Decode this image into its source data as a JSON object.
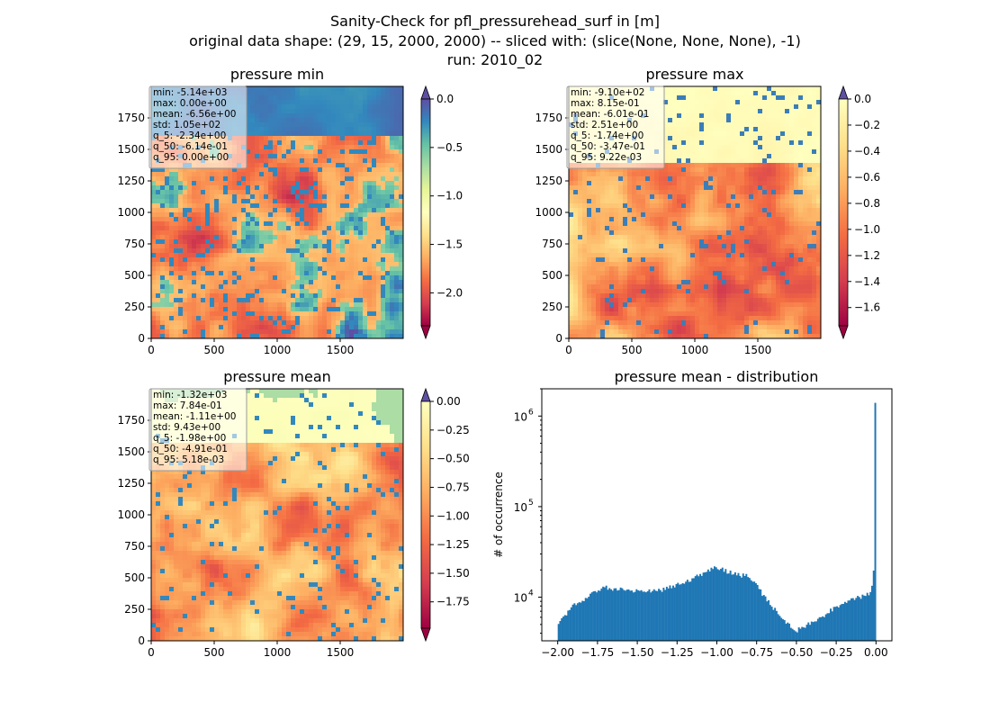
{
  "figure": {
    "title_lines": [
      "Sanity-Check for pfl_pressurehead_surf in [m]",
      "original data shape: (29, 15, 2000, 2000) -- sliced with: (slice(None, None, None), -1)",
      "run: 2010_02"
    ]
  },
  "colors": {
    "cmap": "Spectral",
    "over": "#5e4fa2",
    "bar": "#1f77b4"
  },
  "chart_data": [
    {
      "type": "heatmap",
      "title": "pressure min",
      "cmap": "Spectral",
      "xlim": [
        0,
        2000
      ],
      "ylim": [
        0,
        2000
      ],
      "xticks": [
        "0",
        "500",
        "1000",
        "1500"
      ],
      "yticks": [
        "0",
        "250",
        "500",
        "750",
        "1000",
        "1250",
        "1500",
        "1750"
      ],
      "colorbar": {
        "range": [
          -2.34,
          0.0
        ],
        "ticks": [
          "0.0",
          "-0.5",
          "-1.0",
          "-1.5",
          "-2.0"
        ],
        "extend": "both"
      },
      "stats": [
        "min: -5.14e+03",
        "max: 0.00e+00",
        "mean: -6.56e+00",
        "std: 1.05e+02",
        "q_5: -2.34e+00",
        "q_50: -6.14e-01",
        "q_95: 0.00e+00"
      ]
    },
    {
      "type": "heatmap",
      "title": "pressure max",
      "cmap": "Spectral",
      "xlim": [
        0,
        2000
      ],
      "ylim": [
        0,
        2000
      ],
      "xticks": [
        "0",
        "500",
        "1000",
        "1500"
      ],
      "yticks": [
        "0",
        "250",
        "500",
        "750",
        "1000",
        "1250",
        "1500",
        "1750"
      ],
      "colorbar": {
        "range": [
          -1.74,
          0.0
        ],
        "ticks": [
          "0.0",
          "-0.2",
          "-0.4",
          "-0.6",
          "-0.8",
          "-1.0",
          "-1.2",
          "-1.4",
          "-1.6"
        ],
        "extend": "both"
      },
      "stats": [
        "min: -9.10e+02",
        "max: 8.15e-01",
        "mean: -6.01e-01",
        "std: 2.51e+00",
        "q_5: -1.74e+00",
        "q_50: -3.47e-01",
        "q_95: 9.22e-03"
      ]
    },
    {
      "type": "heatmap",
      "title": "pressure mean",
      "cmap": "Spectral",
      "xlim": [
        0,
        2000
      ],
      "ylim": [
        0,
        2000
      ],
      "xticks": [
        "0",
        "500",
        "1000",
        "1500"
      ],
      "yticks": [
        "0",
        "250",
        "500",
        "750",
        "1000",
        "1250",
        "1500",
        "1750"
      ],
      "colorbar": {
        "range": [
          -1.98,
          0.0
        ],
        "ticks": [
          "0.00",
          "-0.25",
          "-0.50",
          "-0.75",
          "-1.00",
          "-1.25",
          "-1.50",
          "-1.75"
        ],
        "extend": "both"
      },
      "stats": [
        "min: -1.32e+03",
        "max: 7.84e-01",
        "mean: -1.11e+00",
        "std: 9.43e+00",
        "q_5: -1.98e+00",
        "q_50: -4.91e-01",
        "q_95: 5.18e-03"
      ]
    },
    {
      "type": "bar",
      "title": "pressure mean - distribution",
      "xlabel": "",
      "ylabel": "# of occurrence",
      "yscale": "log",
      "xlim": [
        -2.1,
        0.1
      ],
      "ylim": [
        3300,
        2000000
      ],
      "xticks": [
        "-2.00",
        "-1.75",
        "-1.50",
        "-1.25",
        "-1.00",
        "-0.75",
        "-0.50",
        "-0.25",
        "0.00"
      ],
      "yticks": [
        "10^4",
        "10^5",
        "10^6"
      ],
      "bin_edges": [
        -2.0,
        0.0
      ],
      "bins": 200,
      "curve": [
        {
          "x": -2.0,
          "y": 5200
        },
        {
          "x": -1.96,
          "y": 6000
        },
        {
          "x": -1.9,
          "y": 8000
        },
        {
          "x": -1.8,
          "y": 10500
        },
        {
          "x": -1.75,
          "y": 11800
        },
        {
          "x": -1.7,
          "y": 12800
        },
        {
          "x": -1.65,
          "y": 12500
        },
        {
          "x": -1.55,
          "y": 11900
        },
        {
          "x": -1.45,
          "y": 11500
        },
        {
          "x": -1.35,
          "y": 12000
        },
        {
          "x": -1.25,
          "y": 13600
        },
        {
          "x": -1.15,
          "y": 16000
        },
        {
          "x": -1.05,
          "y": 19500
        },
        {
          "x": -1.0,
          "y": 21500
        },
        {
          "x": -0.95,
          "y": 19500
        },
        {
          "x": -0.85,
          "y": 17500
        },
        {
          "x": -0.8,
          "y": 17000
        },
        {
          "x": -0.75,
          "y": 13500
        },
        {
          "x": -0.7,
          "y": 10000
        },
        {
          "x": -0.65,
          "y": 7800
        },
        {
          "x": -0.6,
          "y": 6400
        },
        {
          "x": -0.55,
          "y": 5000
        },
        {
          "x": -0.5,
          "y": 4300
        },
        {
          "x": -0.45,
          "y": 4800
        },
        {
          "x": -0.4,
          "y": 5400
        },
        {
          "x": -0.35,
          "y": 6000
        },
        {
          "x": -0.3,
          "y": 6800
        },
        {
          "x": -0.25,
          "y": 7800
        },
        {
          "x": -0.2,
          "y": 8800
        },
        {
          "x": -0.15,
          "y": 9500
        },
        {
          "x": -0.1,
          "y": 10000
        },
        {
          "x": -0.06,
          "y": 10500
        },
        {
          "x": -0.03,
          "y": 11500
        },
        {
          "x": -0.01,
          "y": 24000
        },
        {
          "x": 0.0,
          "y": 1400000
        }
      ]
    }
  ]
}
